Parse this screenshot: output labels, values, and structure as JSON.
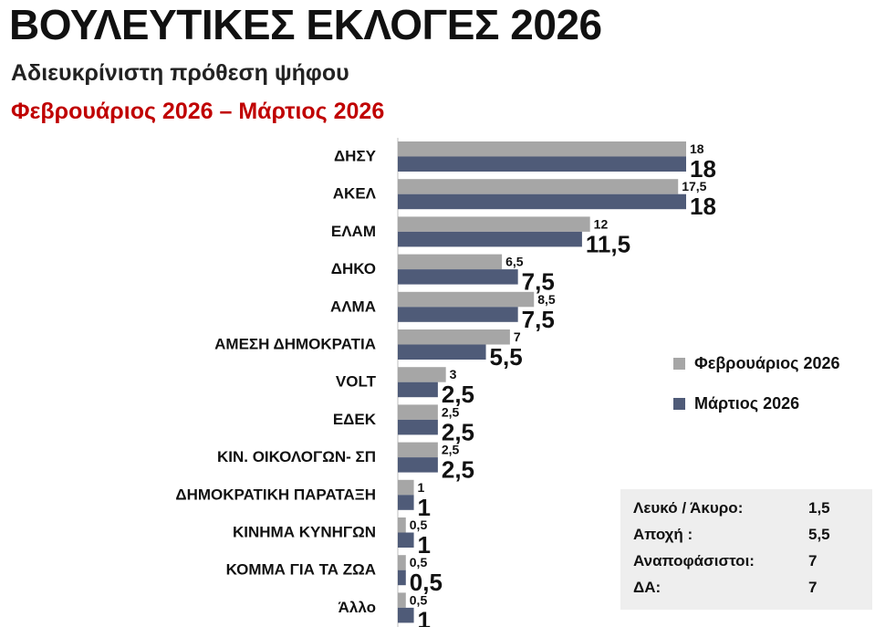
{
  "header": {
    "title": "ΒΟΥΛΕΥΤΙΚΕΣ ΕΚΛΟΓΕΣ 2026",
    "subtitle": "Αδιευκρίνιστη πρόθεση ψήφου",
    "period": "Φεβρουάριος 2026 – Μάρτιος 2026",
    "period_color": "#c00000"
  },
  "chart_data": {
    "type": "bar",
    "orientation": "horizontal",
    "categories": [
      "ΔΗΣΥ",
      "ΑΚΕΛ",
      "ΕΛΑΜ",
      "ΔΗΚΟ",
      "ΑΛΜΑ",
      "ΑΜΕΣΗ ΔΗΜΟΚΡΑΤΙΑ",
      "VOLT",
      "ΕΔΕΚ",
      "ΚΙΝ. ΟΙΚΟΛΟΓΩΝ- ΣΠ",
      "ΔΗΜΟΚΡΑΤΙΚΗ ΠΑΡΑΤΑΞΗ",
      "ΚΙΝΗΜΑ ΚΥΝΗΓΩΝ",
      "ΚΟΜΜΑ ΓΙΑ ΤΑ ΖΩΑ",
      "Άλλο"
    ],
    "series": [
      {
        "name": "Φεβρουάριος 2026",
        "color": "#a6a6a6",
        "values": [
          18,
          17.5,
          12,
          6.5,
          8.5,
          7,
          3,
          2.5,
          2.5,
          1,
          0.5,
          0.5,
          0.5
        ],
        "labels": [
          "18",
          "17,5",
          "12",
          "6,5",
          "8,5",
          "7",
          "3",
          "2,5",
          "2,5",
          "1",
          "0,5",
          "0,5",
          "0,5"
        ]
      },
      {
        "name": "Μάρτιος 2026",
        "color": "#4f5b78",
        "values": [
          18,
          18,
          11.5,
          7.5,
          7.5,
          5.5,
          2.5,
          2.5,
          2.5,
          1,
          1,
          0.5,
          1
        ],
        "labels": [
          "18",
          "18",
          "11,5",
          "7,5",
          "7,5",
          "5,5",
          "2,5",
          "2,5",
          "2,5",
          "1",
          "1",
          "0,5",
          "1"
        ]
      }
    ],
    "xlim": [
      0,
      18
    ],
    "grid": false,
    "legend_position": "right"
  },
  "info": {
    "rows": [
      {
        "label": "Λευκό / Άκυρο:",
        "value": "1,5"
      },
      {
        "label": "Αποχή :",
        "value": "5,5"
      },
      {
        "label": "Αναποφάσιστοι:",
        "value": "7"
      },
      {
        "label": "ΔΑ:",
        "value": "7"
      }
    ]
  }
}
